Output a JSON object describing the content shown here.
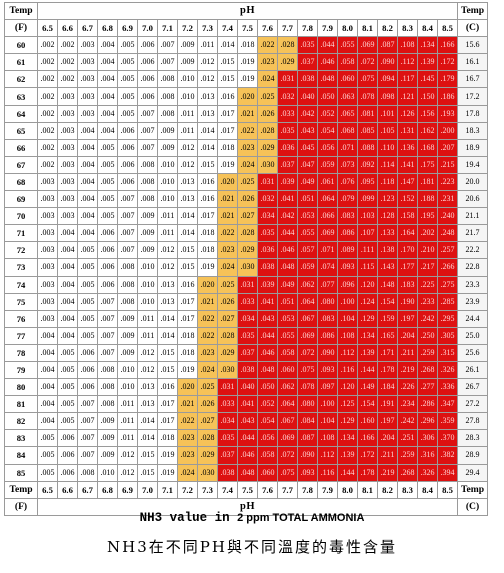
{
  "table": {
    "header_ph_label": "pH",
    "left_temp_label": "Temp",
    "left_unit_label": "(F)",
    "right_temp_label": "Temp",
    "right_unit_label": "(C)",
    "ph_columns": [
      "6.5",
      "6.6",
      "6.7",
      "6.8",
      "6.9",
      "7.0",
      "7.1",
      "7.2",
      "7.3",
      "7.4",
      "7.5",
      "7.6",
      "7.7",
      "7.8",
      "7.9",
      "8.0",
      "8.1",
      "8.2",
      "8.3",
      "8.4",
      "8.5"
    ],
    "cell_colors": {
      "normal": "#ffffff",
      "warning": "#f6c258",
      "danger": "#dd1111"
    },
    "rows": [
      {
        "f": "60",
        "c": "15.6",
        "v": [
          ".002",
          ".002",
          ".003",
          ".004",
          ".005",
          ".006",
          ".007",
          ".009",
          ".011",
          ".014",
          ".018",
          ".022",
          ".028",
          ".035",
          ".044",
          ".055",
          ".069",
          ".087",
          ".108",
          ".134",
          ".166"
        ]
      },
      {
        "f": "61",
        "c": "16.1",
        "v": [
          ".002",
          ".002",
          ".003",
          ".004",
          ".005",
          ".006",
          ".007",
          ".009",
          ".012",
          ".015",
          ".019",
          ".023",
          ".029",
          ".037",
          ".046",
          ".058",
          ".072",
          ".090",
          ".112",
          ".139",
          ".172"
        ]
      },
      {
        "f": "62",
        "c": "16.7",
        "v": [
          ".002",
          ".002",
          ".003",
          ".004",
          ".005",
          ".006",
          ".008",
          ".010",
          ".012",
          ".015",
          ".019",
          ".024",
          ".031",
          ".038",
          ".048",
          ".060",
          ".075",
          ".094",
          ".117",
          ".145",
          ".179"
        ]
      },
      {
        "f": "63",
        "c": "17.2",
        "v": [
          ".002",
          ".003",
          ".003",
          ".004",
          ".005",
          ".006",
          ".008",
          ".010",
          ".013",
          ".016",
          ".020",
          ".025",
          ".032",
          ".040",
          ".050",
          ".063",
          ".078",
          ".098",
          ".121",
          ".150",
          ".186"
        ]
      },
      {
        "f": "64",
        "c": "17.8",
        "v": [
          ".002",
          ".003",
          ".003",
          ".004",
          ".005",
          ".007",
          ".008",
          ".011",
          ".013",
          ".017",
          ".021",
          ".026",
          ".033",
          ".042",
          ".052",
          ".065",
          ".081",
          ".101",
          ".126",
          ".156",
          ".193"
        ]
      },
      {
        "f": "65",
        "c": "18.3",
        "v": [
          ".002",
          ".003",
          ".004",
          ".004",
          ".006",
          ".007",
          ".009",
          ".011",
          ".014",
          ".017",
          ".022",
          ".028",
          ".035",
          ".043",
          ".054",
          ".068",
          ".085",
          ".105",
          ".131",
          ".162",
          ".200"
        ]
      },
      {
        "f": "66",
        "c": "18.9",
        "v": [
          ".002",
          ".003",
          ".004",
          ".005",
          ".006",
          ".007",
          ".009",
          ".012",
          ".014",
          ".018",
          ".023",
          ".029",
          ".036",
          ".045",
          ".056",
          ".071",
          ".088",
          ".110",
          ".136",
          ".168",
          ".207"
        ]
      },
      {
        "f": "67",
        "c": "19.4",
        "v": [
          ".002",
          ".003",
          ".004",
          ".005",
          ".006",
          ".008",
          ".010",
          ".012",
          ".015",
          ".019",
          ".024",
          ".030",
          ".037",
          ".047",
          ".059",
          ".073",
          ".092",
          ".114",
          ".141",
          ".175",
          ".215"
        ]
      },
      {
        "f": "68",
        "c": "20.0",
        "v": [
          ".003",
          ".003",
          ".004",
          ".005",
          ".006",
          ".008",
          ".010",
          ".013",
          ".016",
          ".020",
          ".025",
          ".031",
          ".039",
          ".049",
          ".061",
          ".076",
          ".095",
          ".118",
          ".147",
          ".181",
          ".223"
        ]
      },
      {
        "f": "69",
        "c": "20.6",
        "v": [
          ".003",
          ".003",
          ".004",
          ".005",
          ".007",
          ".008",
          ".010",
          ".013",
          ".016",
          ".021",
          ".026",
          ".032",
          ".041",
          ".051",
          ".064",
          ".079",
          ".099",
          ".123",
          ".152",
          ".188",
          ".231"
        ]
      },
      {
        "f": "70",
        "c": "21.1",
        "v": [
          ".003",
          ".003",
          ".004",
          ".005",
          ".007",
          ".009",
          ".011",
          ".014",
          ".017",
          ".021",
          ".027",
          ".034",
          ".042",
          ".053",
          ".066",
          ".083",
          ".103",
          ".128",
          ".158",
          ".195",
          ".240"
        ]
      },
      {
        "f": "71",
        "c": "21.7",
        "v": [
          ".003",
          ".004",
          ".004",
          ".006",
          ".007",
          ".009",
          ".011",
          ".014",
          ".018",
          ".022",
          ".028",
          ".035",
          ".044",
          ".055",
          ".069",
          ".086",
          ".107",
          ".133",
          ".164",
          ".202",
          ".248"
        ]
      },
      {
        "f": "72",
        "c": "22.2",
        "v": [
          ".003",
          ".004",
          ".005",
          ".006",
          ".007",
          ".009",
          ".012",
          ".015",
          ".018",
          ".023",
          ".029",
          ".036",
          ".046",
          ".057",
          ".071",
          ".089",
          ".111",
          ".138",
          ".170",
          ".210",
          ".257"
        ]
      },
      {
        "f": "73",
        "c": "22.8",
        "v": [
          ".003",
          ".004",
          ".005",
          ".006",
          ".008",
          ".010",
          ".012",
          ".015",
          ".019",
          ".024",
          ".030",
          ".038",
          ".048",
          ".059",
          ".074",
          ".093",
          ".115",
          ".143",
          ".177",
          ".217",
          ".266"
        ]
      },
      {
        "f": "74",
        "c": "23.3",
        "v": [
          ".003",
          ".004",
          ".005",
          ".006",
          ".008",
          ".010",
          ".013",
          ".016",
          ".020",
          ".025",
          ".031",
          ".039",
          ".049",
          ".062",
          ".077",
          ".096",
          ".120",
          ".148",
          ".183",
          ".225",
          ".275"
        ]
      },
      {
        "f": "75",
        "c": "23.9",
        "v": [
          ".003",
          ".004",
          ".005",
          ".007",
          ".008",
          ".010",
          ".013",
          ".017",
          ".021",
          ".026",
          ".033",
          ".041",
          ".051",
          ".064",
          ".080",
          ".100",
          ".124",
          ".154",
          ".190",
          ".233",
          ".285"
        ]
      },
      {
        "f": "76",
        "c": "24.4",
        "v": [
          ".003",
          ".004",
          ".005",
          ".007",
          ".009",
          ".011",
          ".014",
          ".017",
          ".022",
          ".027",
          ".034",
          ".043",
          ".053",
          ".067",
          ".083",
          ".104",
          ".129",
          ".159",
          ".197",
          ".242",
          ".295"
        ]
      },
      {
        "f": "77",
        "c": "25.0",
        "v": [
          ".004",
          ".004",
          ".005",
          ".007",
          ".009",
          ".011",
          ".014",
          ".018",
          ".022",
          ".028",
          ".035",
          ".044",
          ".055",
          ".069",
          ".086",
          ".108",
          ".134",
          ".165",
          ".204",
          ".250",
          ".305"
        ]
      },
      {
        "f": "78",
        "c": "25.6",
        "v": [
          ".004",
          ".005",
          ".006",
          ".007",
          ".009",
          ".012",
          ".015",
          ".018",
          ".023",
          ".029",
          ".037",
          ".046",
          ".058",
          ".072",
          ".090",
          ".112",
          ".139",
          ".171",
          ".211",
          ".259",
          ".315"
        ]
      },
      {
        "f": "79",
        "c": "26.1",
        "v": [
          ".004",
          ".005",
          ".006",
          ".008",
          ".010",
          ".012",
          ".015",
          ".019",
          ".024",
          ".030",
          ".038",
          ".048",
          ".060",
          ".075",
          ".093",
          ".116",
          ".144",
          ".178",
          ".219",
          ".268",
          ".326"
        ]
      },
      {
        "f": "80",
        "c": "26.7",
        "v": [
          ".004",
          ".005",
          ".006",
          ".008",
          ".010",
          ".013",
          ".016",
          ".020",
          ".025",
          ".031",
          ".040",
          ".050",
          ".062",
          ".078",
          ".097",
          ".120",
          ".149",
          ".184",
          ".226",
          ".277",
          ".336"
        ]
      },
      {
        "f": "81",
        "c": "27.2",
        "v": [
          ".004",
          ".005",
          ".007",
          ".008",
          ".011",
          ".013",
          ".017",
          ".021",
          ".026",
          ".033",
          ".041",
          ".052",
          ".064",
          ".080",
          ".100",
          ".125",
          ".154",
          ".191",
          ".234",
          ".286",
          ".347"
        ]
      },
      {
        "f": "82",
        "c": "27.8",
        "v": [
          ".004",
          ".005",
          ".007",
          ".009",
          ".011",
          ".014",
          ".017",
          ".022",
          ".027",
          ".034",
          ".043",
          ".054",
          ".067",
          ".084",
          ".104",
          ".129",
          ".160",
          ".197",
          ".242",
          ".296",
          ".359"
        ]
      },
      {
        "f": "83",
        "c": "28.3",
        "v": [
          ".005",
          ".006",
          ".007",
          ".009",
          ".011",
          ".014",
          ".018",
          ".023",
          ".028",
          ".035",
          ".044",
          ".056",
          ".069",
          ".087",
          ".108",
          ".134",
          ".166",
          ".204",
          ".251",
          ".306",
          ".370"
        ]
      },
      {
        "f": "84",
        "c": "28.9",
        "v": [
          ".005",
          ".006",
          ".007",
          ".009",
          ".012",
          ".015",
          ".019",
          ".023",
          ".029",
          ".037",
          ".046",
          ".058",
          ".072",
          ".090",
          ".112",
          ".139",
          ".172",
          ".211",
          ".259",
          ".316",
          ".382"
        ]
      },
      {
        "f": "85",
        "c": "29.4",
        "v": [
          ".005",
          ".006",
          ".008",
          ".010",
          ".012",
          ".015",
          ".019",
          ".024",
          ".030",
          ".038",
          ".048",
          ".060",
          ".075",
          ".093",
          ".116",
          ".144",
          ".178",
          ".219",
          ".268",
          ".326",
          ".394"
        ]
      }
    ]
  },
  "caption_en": {
    "prefix": "NH3 value in ",
    "bold": "2 ppm TOTAL AMMONIA"
  },
  "caption_zh": "NH3在不同PH與不同溫度的毒性含量"
}
